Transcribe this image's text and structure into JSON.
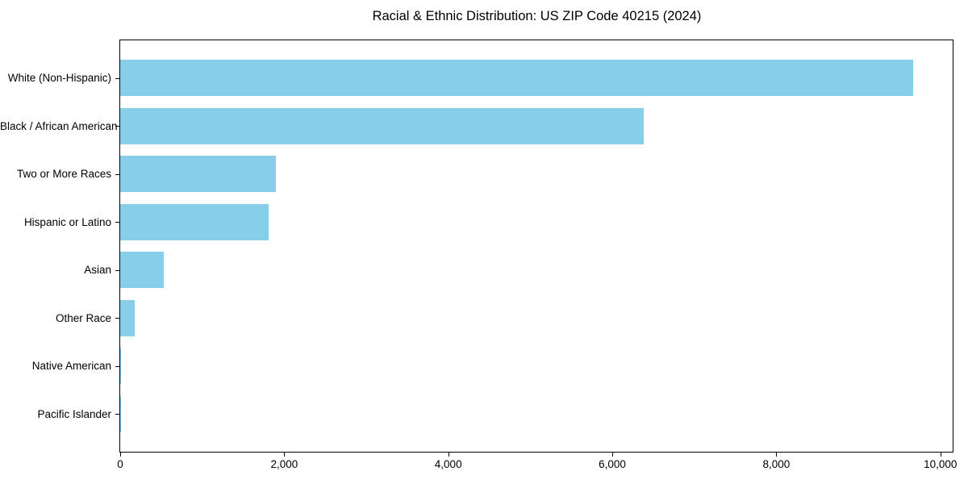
{
  "chart_data": {
    "type": "bar",
    "orientation": "horizontal",
    "title": "Racial & Ethnic Distribution: US ZIP Code 40215 (2024)",
    "categories": [
      "White (Non-Hispanic)",
      "Black / African American",
      "Two or More Races",
      "Hispanic or Latino",
      "Asian",
      "Other Race",
      "Native American",
      "Pacific Islander"
    ],
    "values": [
      9670,
      6380,
      1900,
      1810,
      530,
      180,
      10,
      4
    ],
    "xlabel": "",
    "ylabel": "",
    "xlim": [
      0,
      10150
    ],
    "xticks": [
      0,
      2000,
      4000,
      6000,
      8000,
      10000
    ],
    "xtick_labels": [
      "0",
      "2,000",
      "4,000",
      "6,000",
      "8,000",
      "10,000"
    ],
    "bar_color": "#87CEEB",
    "grid": false,
    "legend_position": "none",
    "background_color": "#ffffff",
    "axis_color": "#000000",
    "text_color": "#000000"
  }
}
